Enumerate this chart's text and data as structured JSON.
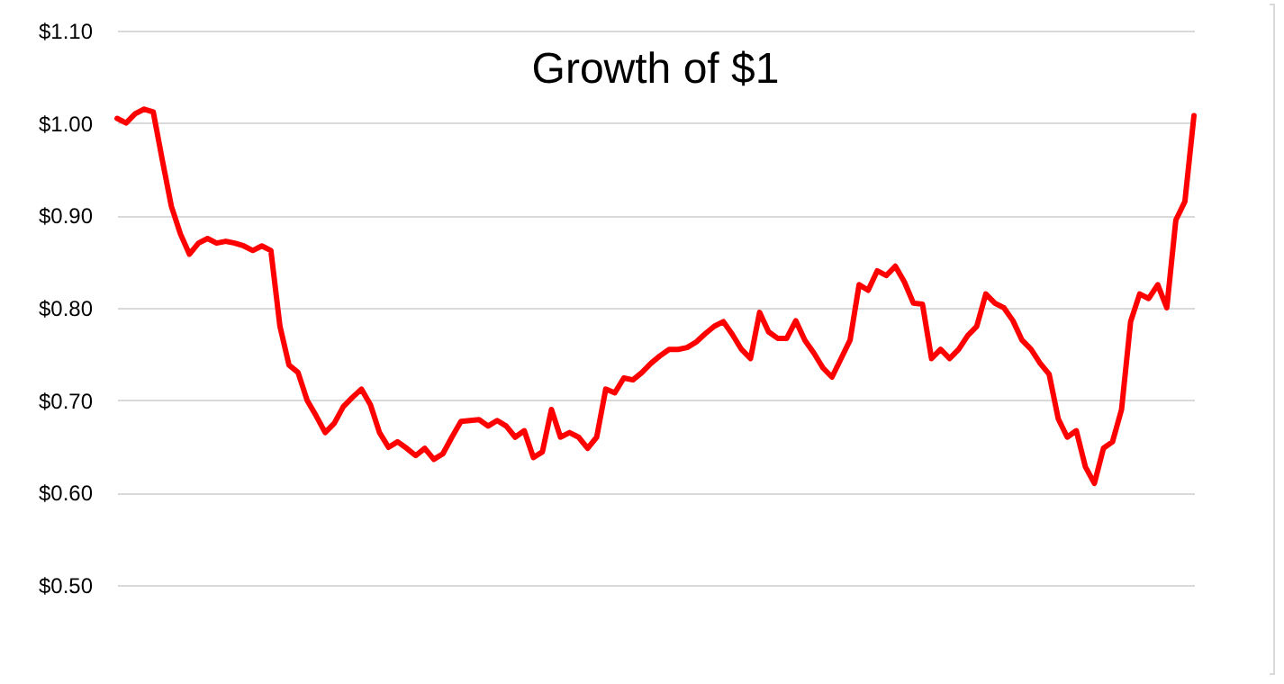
{
  "chart_data": {
    "type": "line",
    "title": "Growth of $1",
    "categories": [
      null,
      null,
      null,
      null,
      null,
      null,
      null,
      null,
      null,
      null,
      null,
      null,
      null,
      null,
      null,
      null,
      null,
      null,
      null,
      null,
      null,
      null,
      null,
      null,
      null,
      null,
      null,
      null,
      null,
      null,
      null,
      null,
      null,
      null,
      null,
      null,
      null,
      null,
      null,
      null,
      null,
      null,
      null,
      null,
      null,
      null,
      null,
      null,
      null,
      null,
      null,
      null,
      null,
      null,
      null,
      null,
      null,
      null,
      null,
      null,
      null,
      null,
      null,
      null,
      null,
      null,
      null,
      null,
      null,
      null,
      null,
      null,
      null,
      null,
      null,
      null,
      null,
      null,
      null,
      null,
      null,
      null,
      null,
      null,
      null,
      null,
      null,
      null,
      null,
      null,
      null,
      null,
      null,
      null,
      null,
      null,
      null,
      null,
      null,
      null,
      null,
      null,
      null,
      null,
      null,
      null,
      null,
      null,
      null,
      null,
      null,
      null,
      null,
      null,
      null,
      null,
      null,
      null,
      null,
      null
    ],
    "series": [
      {
        "color": "#ff0000",
        "values": [
          1.005,
          1.0,
          1.01,
          1.015,
          1.012,
          0.96,
          0.91,
          0.88,
          0.858,
          0.87,
          0.875,
          0.87,
          0.872,
          0.87,
          0.867,
          0.862,
          0.867,
          0.862,
          0.78,
          0.738,
          0.73,
          0.7,
          0.683,
          0.665,
          0.675,
          0.693,
          0.703,
          0.712,
          0.695,
          0.665,
          0.649,
          0.655,
          0.648,
          0.64,
          0.648,
          0.636,
          0.642,
          0.66,
          0.677,
          0.678,
          0.679,
          0.672,
          0.678,
          0.672,
          0.66,
          0.667,
          0.638,
          0.644,
          0.69,
          0.66,
          0.665,
          0.66,
          0.648,
          0.66,
          0.712,
          0.708,
          0.724,
          0.722,
          0.73,
          0.74,
          0.748,
          0.755,
          0.755,
          0.757,
          0.763,
          0.772,
          0.78,
          0.785,
          0.771,
          0.755,
          0.745,
          0.795,
          0.774,
          0.767,
          0.767,
          0.786,
          0.765,
          0.751,
          0.735,
          0.725,
          0.745,
          0.765,
          0.825,
          0.819,
          0.84,
          0.835,
          0.845,
          0.828,
          0.805,
          0.804,
          0.745,
          0.755,
          0.745,
          0.755,
          0.77,
          0.78,
          0.815,
          0.805,
          0.8,
          0.786,
          0.765,
          0.755,
          0.74,
          0.728,
          0.68,
          0.66,
          0.667,
          0.628,
          0.61,
          0.648,
          0.655,
          0.69,
          0.785,
          0.815,
          0.81,
          0.825,
          0.8,
          0.895,
          0.915,
          1.008
        ]
      }
    ],
    "ylim": [
      0.5,
      1.1
    ],
    "yticks": [
      {
        "value": 0.5,
        "label": "$0.50"
      },
      {
        "value": 0.6,
        "label": "$0.60"
      },
      {
        "value": 0.7,
        "label": "$0.70"
      },
      {
        "value": 0.8,
        "label": "$0.80"
      },
      {
        "value": 0.9,
        "label": "$0.90"
      },
      {
        "value": 1.0,
        "label": "$1.00"
      },
      {
        "value": 1.1,
        "label": "$1.10"
      }
    ],
    "grid": "y",
    "tick_labels": "y",
    "marker": "none",
    "line_style": "solid"
  }
}
